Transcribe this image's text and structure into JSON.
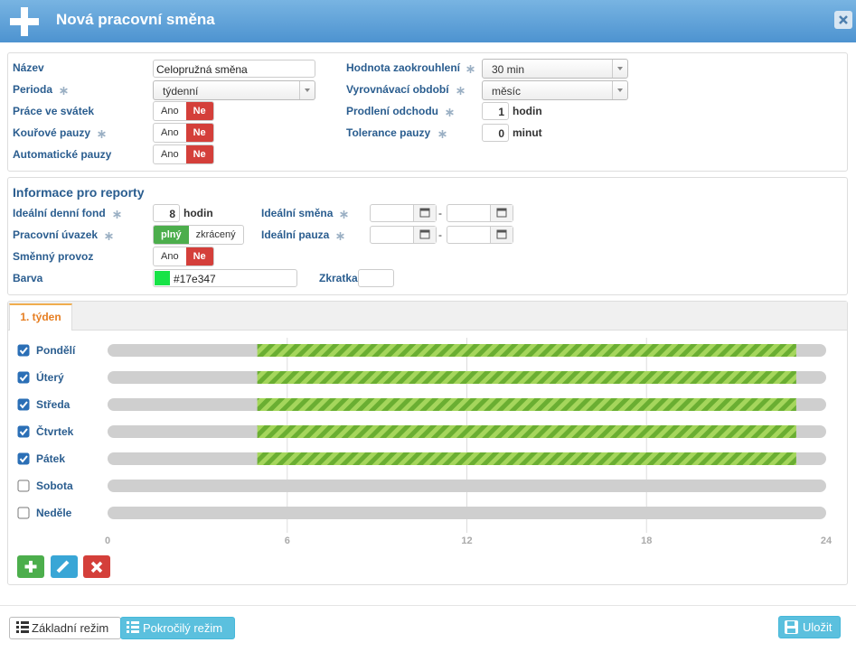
{
  "header": {
    "title": "Nová pracovní směna"
  },
  "basic": {
    "name": {
      "label": "Název",
      "value": "Celopružná směna"
    },
    "period": {
      "label": "Perioda",
      "value": "týdenní"
    },
    "holiday": {
      "label": "Práce ve svátek",
      "yes": "Ano",
      "no": "Ne"
    },
    "smoke": {
      "label": "Kouřové pauzy",
      "yes": "Ano",
      "no": "Ne"
    },
    "autobreak": {
      "label": "Automatické pauzy",
      "yes": "Ano",
      "no": "Ne"
    },
    "rounding": {
      "label": "Hodnota zaokrouhlení",
      "value": "30 min"
    },
    "balance": {
      "label": "Vyrovnávací období",
      "value": "měsíc"
    },
    "delay": {
      "label": "Prodlení odchodu",
      "value": 1,
      "unit": "hodin"
    },
    "tolerance": {
      "label": "Tolerance pauzy",
      "value": 0,
      "unit": "minut"
    }
  },
  "reports": {
    "title": "Informace pro reporty",
    "fund": {
      "label": "Ideální denní fond",
      "value": 8,
      "unit": "hodin"
    },
    "contract": {
      "label": "Pracovní úvazek",
      "full": "plný",
      "short": "zkrácený"
    },
    "shiftop": {
      "label": "Směnný provoz",
      "yes": "Ano",
      "no": "Ne"
    },
    "color": {
      "label": "Barva",
      "value": "#17e347"
    },
    "ideal_shift": {
      "label": "Ideální směna",
      "separator": "-"
    },
    "ideal_break": {
      "label": "Ideální pauza",
      "separator": "-"
    },
    "abbr": {
      "label": "Zkratka"
    }
  },
  "schedule": {
    "tab": "1. týden",
    "range": [
      0,
      24
    ],
    "ticks": [
      0,
      6,
      12,
      18,
      24
    ],
    "days": [
      {
        "name": "Pondělí",
        "checked": true,
        "start": 5,
        "end": 23
      },
      {
        "name": "Úterý",
        "checked": true,
        "start": 5,
        "end": 23
      },
      {
        "name": "Středa",
        "checked": true,
        "start": 5,
        "end": 23
      },
      {
        "name": "Čtvrtek",
        "checked": true,
        "start": 5,
        "end": 23
      },
      {
        "name": "Pátek",
        "checked": true,
        "start": 5,
        "end": 23
      },
      {
        "name": "Sobota",
        "checked": false,
        "start": null,
        "end": null
      },
      {
        "name": "Neděle",
        "checked": false,
        "start": null,
        "end": null
      }
    ]
  },
  "footer": {
    "basic": "Základní režim",
    "advanced": "Pokročilý režim",
    "save": "Uložit"
  }
}
